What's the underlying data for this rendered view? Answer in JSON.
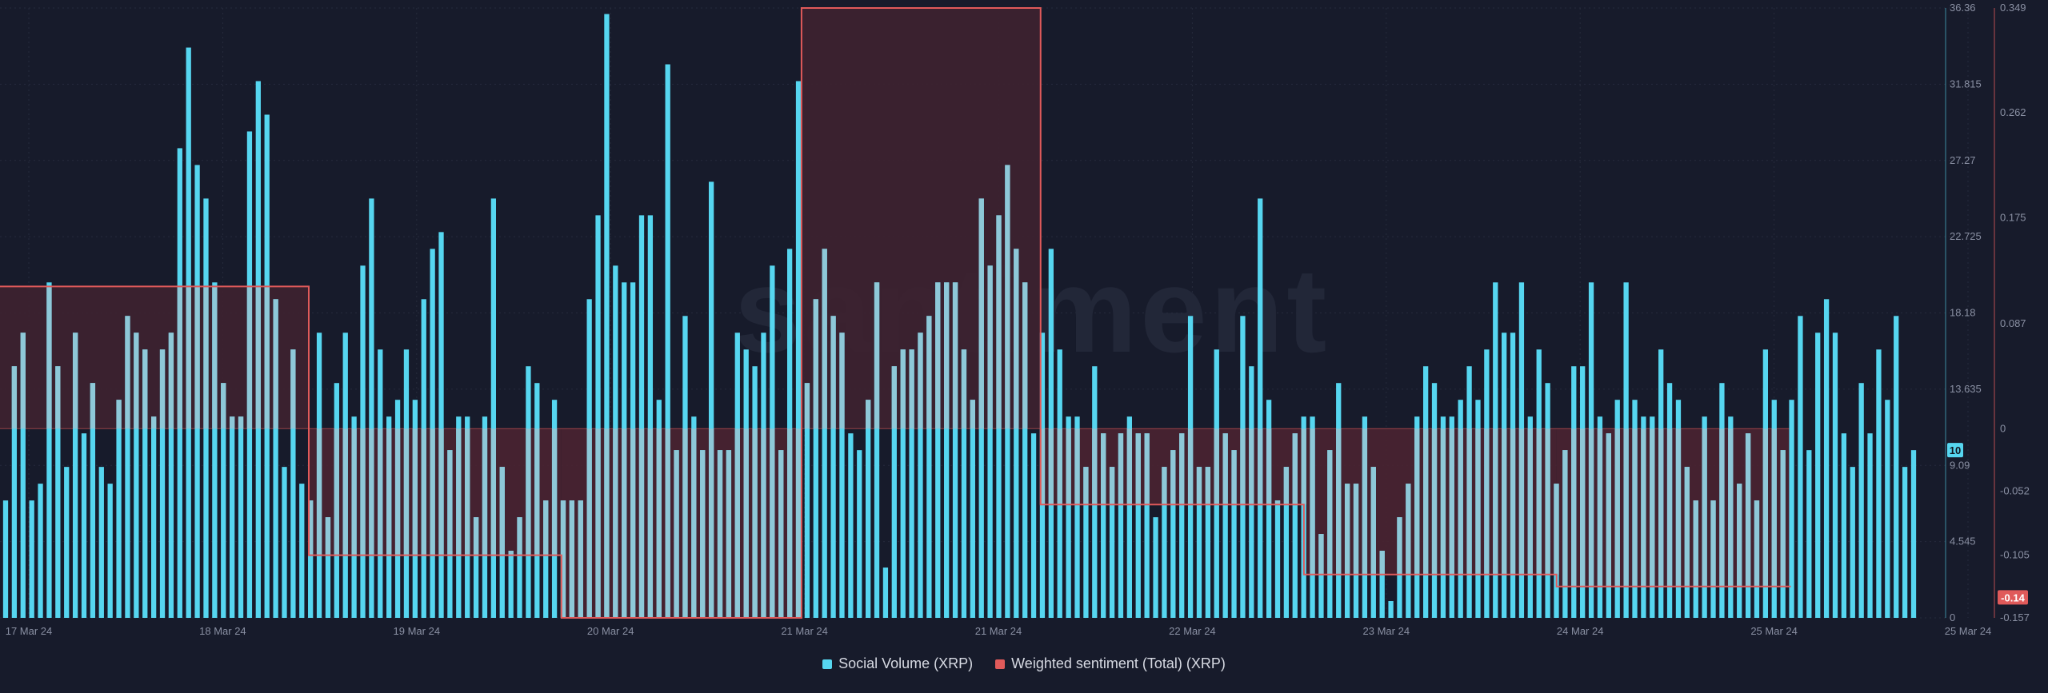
{
  "watermark": "santiment",
  "colors": {
    "background": "#171b2b",
    "grid": "#262b3c",
    "volume": "#56d6f0",
    "volume_overlap": "#8ec8d8",
    "sentiment_line": "#e05a5a",
    "sentiment_fill": "#4a2431",
    "sentiment_fill_pos": "#3e2230",
    "axis_text": "#8a90a3"
  },
  "chart_data": {
    "type": "bar",
    "title": "",
    "xlabel": "",
    "x_ticks": [
      "17 Mar 24",
      "18 Mar 24",
      "19 Mar 24",
      "20 Mar 24",
      "21 Mar 24",
      "21 Mar 24",
      "22 Mar 24",
      "23 Mar 24",
      "24 Mar 24",
      "25 Mar 24",
      "25 Mar 24"
    ],
    "series": [
      {
        "name": "Social Volume (XRP)",
        "type": "bar",
        "axis": "left",
        "ylim": [
          0,
          36.36
        ],
        "y_ticks": [
          "0",
          "4.545",
          "9.09",
          "13.635",
          "18.18",
          "22.725",
          "27.27",
          "31.815",
          "36.36"
        ],
        "current_value_label": "10",
        "values": [
          7,
          15,
          17,
          7,
          8,
          20,
          15,
          9,
          17,
          11,
          14,
          9,
          8,
          13,
          18,
          17,
          16,
          12,
          16,
          17,
          28,
          34,
          27,
          25,
          20,
          14,
          12,
          12,
          29,
          32,
          30,
          19,
          9,
          16,
          8,
          7,
          17,
          6,
          14,
          17,
          12,
          21,
          25,
          16,
          12,
          13,
          16,
          13,
          19,
          22,
          23,
          10,
          12,
          12,
          6,
          12,
          25,
          9,
          4,
          6,
          15,
          14,
          7,
          13,
          7,
          7,
          7,
          19,
          24,
          36,
          21,
          20,
          20,
          24,
          24,
          13,
          33,
          10,
          18,
          12,
          10,
          26,
          10,
          10,
          17,
          16,
          15,
          17,
          21,
          10,
          22,
          32,
          14,
          19,
          22,
          18,
          17,
          11,
          10,
          13,
          20,
          3,
          15,
          16,
          16,
          17,
          18,
          20,
          20,
          20,
          16,
          13,
          25,
          21,
          24,
          27,
          22,
          20,
          11,
          17,
          22,
          16,
          12,
          12,
          9,
          15,
          11,
          9,
          11,
          12,
          11,
          11,
          6,
          9,
          10,
          11,
          18,
          9,
          9,
          16,
          11,
          10,
          18,
          15,
          25,
          13,
          7,
          9,
          11,
          12,
          12,
          5,
          10,
          14,
          8,
          8,
          12,
          9,
          4,
          1,
          6,
          8,
          12,
          15,
          14,
          12,
          12,
          13,
          15,
          13,
          16,
          20,
          17,
          17,
          20,
          12,
          16,
          14,
          8,
          10,
          15,
          15,
          20,
          12,
          11,
          13,
          20,
          13,
          12,
          12,
          16,
          14,
          13,
          9,
          7,
          12,
          7,
          14,
          12,
          8,
          11,
          7,
          16,
          13,
          10,
          13,
          18,
          10,
          17,
          19,
          17,
          11,
          9,
          14,
          11,
          16,
          13,
          18,
          9,
          10
        ]
      },
      {
        "name": "Weighted sentiment (Total) (XRP)",
        "type": "step-area",
        "axis": "right",
        "ylim": [
          -0.157,
          0.349
        ],
        "y_ticks": [
          "-0.157",
          "-0.105",
          "-0.052",
          "0",
          "0.087",
          "0.175",
          "0.262",
          "0.349"
        ],
        "current_value_label": "-0.14",
        "x_range": [
          0,
          1
        ],
        "steps": [
          {
            "from": 0.0,
            "to": 0.1595,
            "value": 0.118
          },
          {
            "from": 0.1595,
            "to": 0.29,
            "value": -0.105
          },
          {
            "from": 0.29,
            "to": 0.414,
            "value": -0.157
          },
          {
            "from": 0.414,
            "to": 0.5375,
            "value": 0.349
          },
          {
            "from": 0.5375,
            "to": 0.6735,
            "value": -0.063
          },
          {
            "from": 0.6735,
            "to": 0.804,
            "value": -0.121
          },
          {
            "from": 0.804,
            "to": 0.925,
            "value": -0.131
          }
        ]
      }
    ],
    "legend": [
      "Social Volume (XRP)",
      "Weighted sentiment (Total) (XRP)"
    ],
    "legend_position": "bottom-center",
    "grid": true
  }
}
